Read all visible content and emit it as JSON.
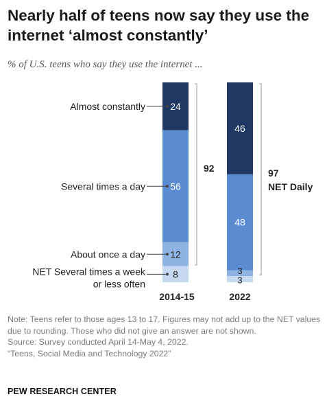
{
  "title": "Nearly half of teens now say they use the internet ‘almost constantly’",
  "subtitle": "% of U.S. teens who say they use the internet ...",
  "colors": {
    "almost_constantly": "#1f3864",
    "several_times_a_day": "#5b8bd0",
    "about_once_a_day": "#8fb3e3",
    "net_weekly_or_less": "#c6d9f1",
    "text_light": "#ffffff",
    "text_dark": "#222222",
    "bracket": "#999999"
  },
  "chart_data": {
    "type": "bar",
    "stacked": true,
    "categories": [
      "2014-15",
      "2022"
    ],
    "series": [
      {
        "name": "Almost constantly",
        "values": [
          24,
          46
        ]
      },
      {
        "name": "Several times a day",
        "values": [
          56,
          48
        ]
      },
      {
        "name": "About once a day",
        "values": [
          12,
          3
        ]
      },
      {
        "name": "NET Several times a week or less often",
        "values": [
          8,
          3
        ]
      }
    ],
    "series_label_lines": [
      [
        "Almost constantly"
      ],
      [
        "Several times a day"
      ],
      [
        "About once a day"
      ],
      [
        "NET Several times a week",
        "or less often"
      ]
    ],
    "net_daily": {
      "values": [
        92,
        97
      ],
      "label": "NET Daily"
    }
  },
  "notes": [
    "Note: Teens refer to those ages 13 to 17. Figures may not add up to the NET values due to rounding. Those who did not give an answer are not shown.",
    "Source: Survey conducted April 14-May 4, 2022.",
    "“Teens, Social Media and Technology 2022”"
  ],
  "footer": "PEW RESEARCH CENTER"
}
